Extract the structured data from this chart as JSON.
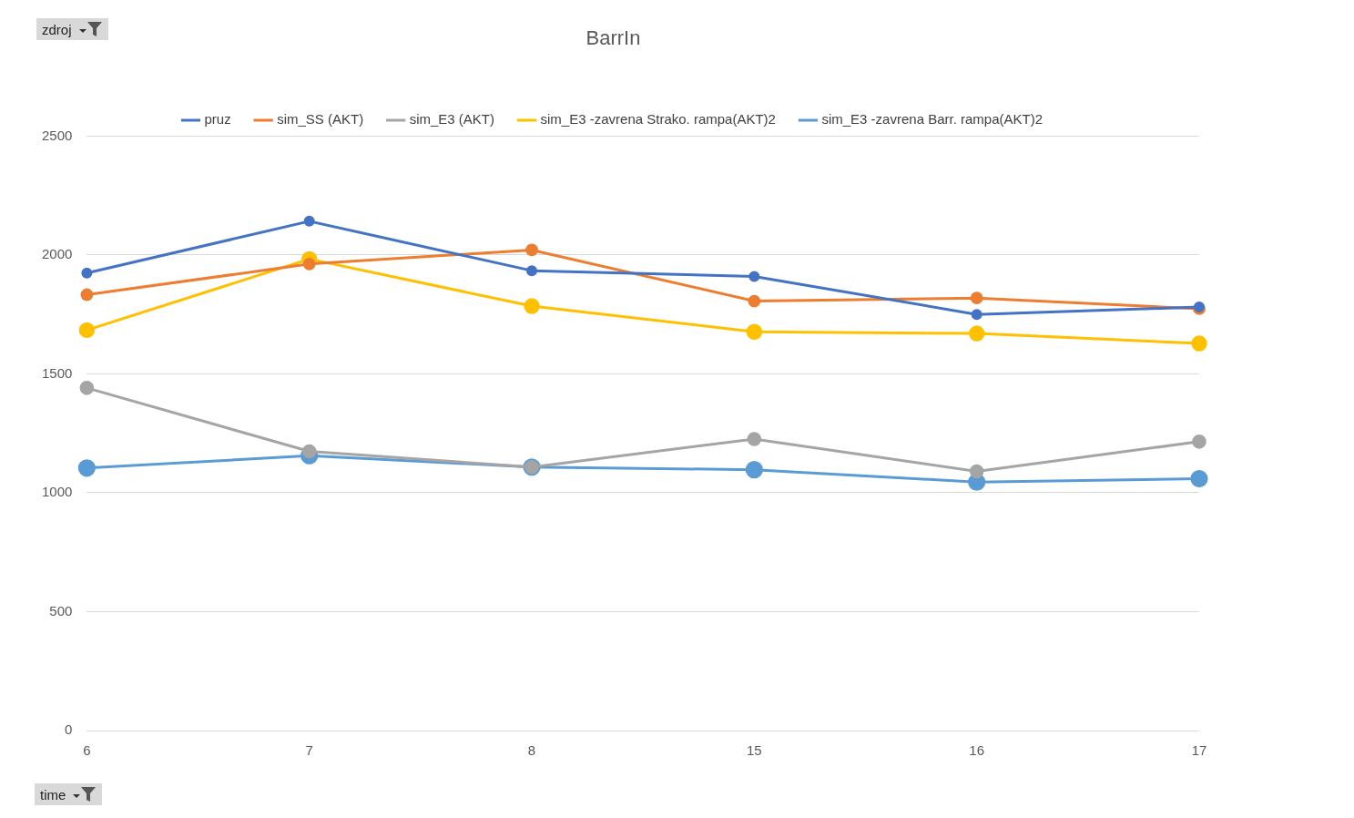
{
  "chart_data": {
    "type": "line",
    "title": "BarrIn",
    "categories": [
      "6",
      "7",
      "8",
      "15",
      "16",
      "17"
    ],
    "series": [
      {
        "name": "pruz",
        "color": "#4472c4",
        "values": [
          1924,
          2142,
          1934,
          1910,
          1750,
          1781
        ]
      },
      {
        "name": "sim_SS (AKT)",
        "color": "#ed7d31",
        "values": [
          1833,
          1962,
          2021,
          1806,
          1819,
          1774
        ]
      },
      {
        "name": "sim_E3 (AKT)",
        "color": "#a5a5a5",
        "values": [
          1441,
          1174,
          1108,
          1226,
          1090,
          1215
        ]
      },
      {
        "name": "sim_E3 -zavrena Strako. rampa(AKT)2",
        "color": "#ffc000",
        "values": [
          1684,
          1983,
          1785,
          1677,
          1670,
          1628
        ]
      },
      {
        "name": "sim_E3 -zavrena Barr. rampa(AKT)2",
        "color": "#5b9bd5",
        "values": [
          1104,
          1156,
          1108,
          1097,
          1045,
          1059
        ]
      }
    ],
    "ylim": [
      0,
      2500
    ],
    "yticks": [
      0,
      500,
      1000,
      1500,
      2000,
      2500
    ],
    "grid": "y",
    "legend": "top",
    "marker": "circle",
    "line_style": "solid",
    "annotations": [
      "zdroj",
      "time"
    ]
  }
}
